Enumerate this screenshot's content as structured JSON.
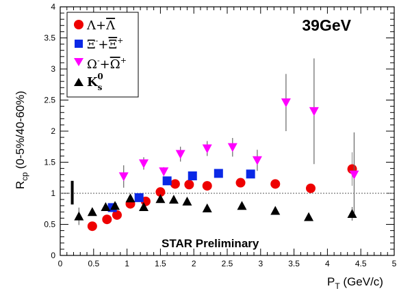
{
  "chart_data": {
    "type": "scatter",
    "title": "",
    "energy_label": "39GeV",
    "annotation": "STAR Preliminary",
    "xlabel": {
      "main": "P",
      "sub": "T",
      "rest": " (GeV/c)"
    },
    "ylabel": {
      "main": "R",
      "sub": "cp",
      "rest": " (0-5%/40-60%)"
    },
    "xlim": [
      0,
      5
    ],
    "ylim": [
      0,
      4
    ],
    "x_ticks": [
      "0",
      "0.5",
      "1",
      "1.5",
      "2",
      "2.5",
      "3",
      "3.5",
      "4",
      "4.5",
      "5"
    ],
    "y_ticks": [
      "0",
      "0.5",
      "1",
      "1.5",
      "2",
      "2.5",
      "3",
      "3.5",
      "4"
    ],
    "reference_line": 1,
    "systematic_bar": {
      "x": 0.18,
      "low": 0.82,
      "high": 1.2
    },
    "grid": false,
    "legend_position": "top-left",
    "series": [
      {
        "name": "Λ+Λ̄",
        "label_html": "Λ+<tspan text-decoration='overline'>Λ</tspan>",
        "marker": "circle",
        "color": "#ee0000",
        "points": [
          {
            "x": 0.48,
            "y": 0.47
          },
          {
            "x": 0.7,
            "y": 0.58
          },
          {
            "x": 0.85,
            "y": 0.65
          },
          {
            "x": 1.05,
            "y": 0.83
          },
          {
            "x": 1.28,
            "y": 0.87
          },
          {
            "x": 1.5,
            "y": 1.02
          },
          {
            "x": 1.72,
            "y": 1.15
          },
          {
            "x": 1.93,
            "y": 1.14
          },
          {
            "x": 2.2,
            "y": 1.12
          },
          {
            "x": 2.7,
            "y": 1.17
          },
          {
            "x": 3.22,
            "y": 1.15
          },
          {
            "x": 3.75,
            "y": 1.08,
            "err": 0.06
          },
          {
            "x": 4.37,
            "y": 1.39,
            "err": 0.27
          }
        ]
      },
      {
        "name": "Ξ⁻+Ξ̄⁺",
        "marker": "square",
        "color": "#0a28e6",
        "points": [
          {
            "x": 0.78,
            "y": 0.77
          },
          {
            "x": 1.18,
            "y": 0.93
          },
          {
            "x": 1.6,
            "y": 1.2
          },
          {
            "x": 1.98,
            "y": 1.28
          },
          {
            "x": 2.37,
            "y": 1.32
          },
          {
            "x": 2.85,
            "y": 1.31
          }
        ]
      },
      {
        "name": "Ω⁻+Ω̄⁺",
        "marker": "triangle-down",
        "color": "#ff00ff",
        "points": [
          {
            "x": 0.95,
            "y": 1.27,
            "err": 0.18
          },
          {
            "x": 1.25,
            "y": 1.48,
            "err": 0.1
          },
          {
            "x": 1.55,
            "y": 1.35,
            "err": 0.07
          },
          {
            "x": 1.8,
            "y": 1.63,
            "err": 0.12
          },
          {
            "x": 2.2,
            "y": 1.72,
            "err": 0.12
          },
          {
            "x": 2.58,
            "y": 1.74,
            "err": 0.15
          },
          {
            "x": 2.95,
            "y": 1.53,
            "err": 0.17
          },
          {
            "x": 3.38,
            "y": 2.46,
            "err": 0.46
          },
          {
            "x": 3.8,
            "y": 2.32,
            "err": 0.85
          },
          {
            "x": 4.4,
            "y": 1.3,
            "err": 0.68
          }
        ]
      },
      {
        "name": "K_s^0",
        "marker": "triangle-up",
        "color": "#000000",
        "points": [
          {
            "x": 0.28,
            "y": 0.63,
            "err": 0.14
          },
          {
            "x": 0.48,
            "y": 0.7
          },
          {
            "x": 0.68,
            "y": 0.78
          },
          {
            "x": 0.82,
            "y": 0.8
          },
          {
            "x": 1.05,
            "y": 0.92
          },
          {
            "x": 1.25,
            "y": 0.78
          },
          {
            "x": 1.5,
            "y": 0.91
          },
          {
            "x": 1.7,
            "y": 0.9
          },
          {
            "x": 1.9,
            "y": 0.87
          },
          {
            "x": 2.2,
            "y": 0.76
          },
          {
            "x": 2.72,
            "y": 0.8
          },
          {
            "x": 3.22,
            "y": 0.72
          },
          {
            "x": 3.72,
            "y": 0.62
          },
          {
            "x": 4.37,
            "y": 0.67,
            "err": 0.11
          }
        ]
      }
    ]
  }
}
